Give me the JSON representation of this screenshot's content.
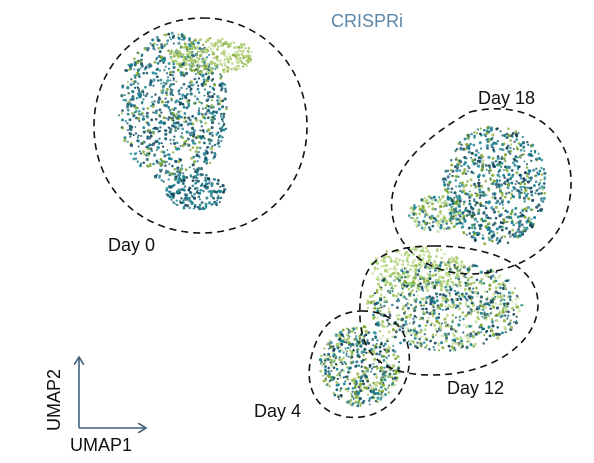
{
  "chart_data": {
    "type": "scatter",
    "title": "CRISPRi",
    "xlabel": "UMAP1",
    "ylabel": "UMAP2",
    "grid": false,
    "legend": "none",
    "colors": {
      "title": "#5c86a8",
      "axis": "#3f5f7a",
      "points": [
        "#1b5f73",
        "#177f8e",
        "#0e3d52",
        "#7fa832",
        "#a9c96a",
        "#c7df9b",
        "#9ed36b"
      ]
    },
    "clusters": [
      {
        "name": "Day 0",
        "label": "Day 0"
      },
      {
        "name": "Day 4",
        "label": "Day 4"
      },
      {
        "name": "Day 12",
        "label": "Day 12"
      },
      {
        "name": "Day 18",
        "label": "Day 18"
      }
    ]
  }
}
